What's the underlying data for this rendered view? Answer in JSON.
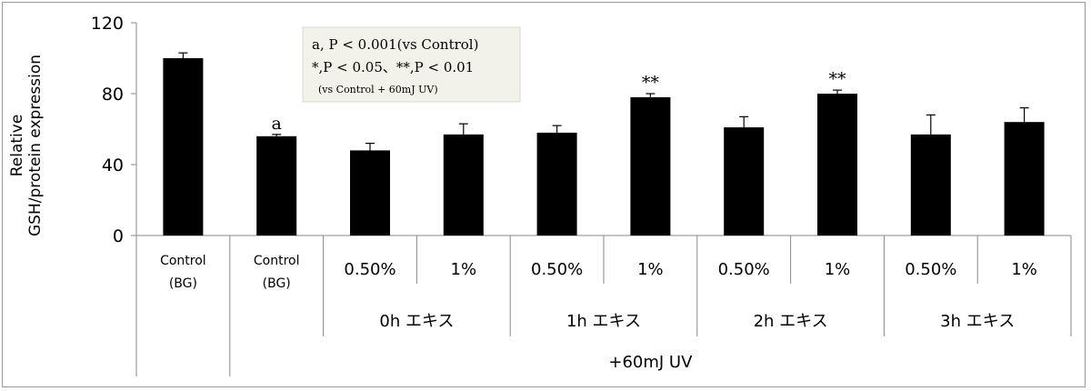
{
  "chart_data": {
    "type": "bar",
    "ylabel_line1": "Relative",
    "ylabel_line2": "GSH/protein  expression",
    "ylim": [
      0,
      120
    ],
    "yticks": [
      "0",
      "40",
      "80",
      "120"
    ],
    "series": [
      {
        "values": [
          100,
          56,
          48,
          57,
          58,
          78,
          61,
          80,
          57,
          64
        ],
        "errors": [
          3,
          1,
          4,
          6,
          4,
          2,
          6,
          2,
          11,
          8
        ],
        "color": "#000000"
      }
    ],
    "category_labels": [
      [
        "Control",
        "(BG)"
      ],
      [
        "Control",
        "(BG)"
      ],
      [
        "0.50%"
      ],
      [
        "1%"
      ],
      [
        "0.50%"
      ],
      [
        "1%"
      ],
      [
        "0.50%"
      ],
      [
        "1%"
      ],
      [
        "0.50%"
      ],
      [
        "1%"
      ]
    ],
    "group_labels": [
      "0h  エキス",
      "1h  エキス",
      "2h  エキス",
      "3h  エキス"
    ],
    "outer_label": "+60mJ UV",
    "bar_annotations": [
      "",
      "a",
      "",
      "",
      "",
      "**",
      "",
      "**",
      "",
      ""
    ],
    "legend_box": {
      "line1": "a, P < 0.001(vs    Control)",
      "line2": "*,P < 0.05、**,P < 0.01",
      "line3": "(vs   Control + 60mJ UV)",
      "background": "#f2f2ea"
    }
  }
}
